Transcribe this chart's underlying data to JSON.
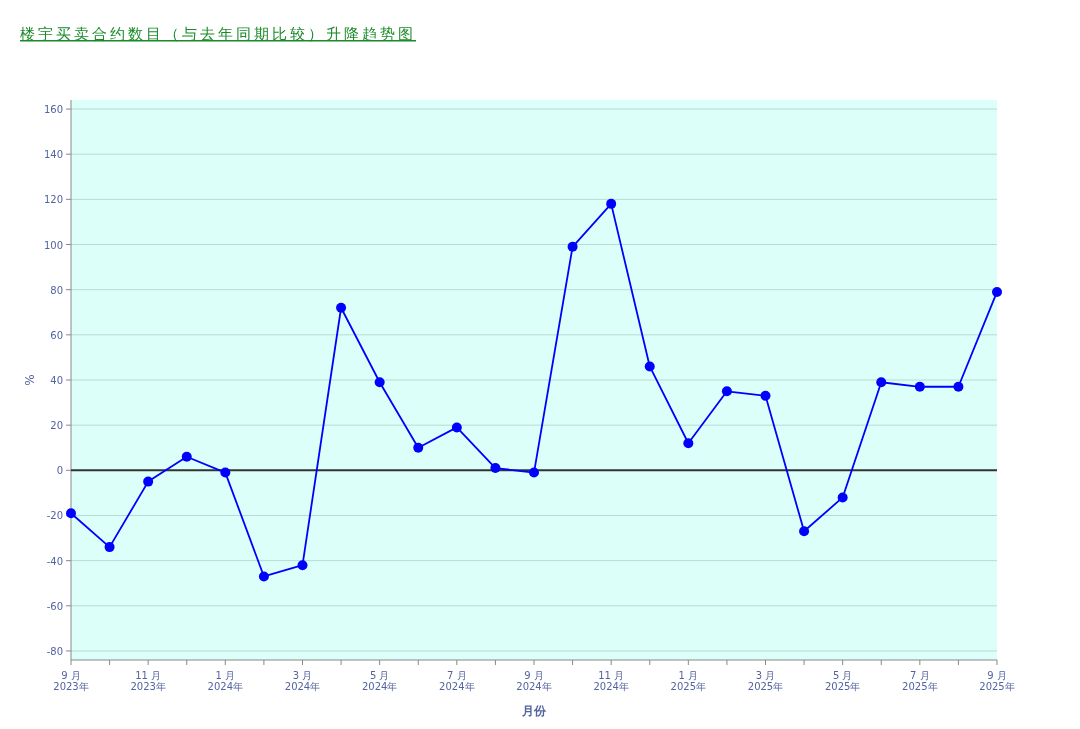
{
  "chart_data": {
    "type": "line",
    "title": "楼宇买卖合约数目（与去年同期比较）升降趋势图",
    "xlabel": "月份",
    "ylabel": "%",
    "x": [
      "2023-09",
      "2023-10",
      "2023-11",
      "2023-12",
      "2024-01",
      "2024-02",
      "2024-03",
      "2024-04",
      "2024-05",
      "2024-06",
      "2024-07",
      "2024-08",
      "2024-09",
      "2024-10",
      "2024-11",
      "2024-12",
      "2025-01",
      "2025-02",
      "2025-03",
      "2025-04",
      "2025-05",
      "2025-06",
      "2025-07",
      "2025-08",
      "2025-09"
    ],
    "series": [
      {
        "color": "#0000ff",
        "values": [
          -19,
          -34,
          -5,
          6,
          -1,
          -47,
          -42,
          72,
          39,
          10,
          19,
          1,
          -1,
          99,
          118,
          46,
          12,
          35,
          33,
          -27,
          -12,
          39,
          37,
          37,
          79
        ]
      }
    ],
    "xlim": [
      "2023-09",
      "2025-09"
    ],
    "xticks": [
      {
        "value": "2023-09",
        "label": "9 月\n2023年"
      },
      {
        "value": "2023-10",
        "label": null
      },
      {
        "value": "2023-11",
        "label": "11 月\n2023年"
      },
      {
        "value": "2023-12",
        "label": null
      },
      {
        "value": "2024-01",
        "label": "1 月\n2024年"
      },
      {
        "value": "2024-02",
        "label": null
      },
      {
        "value": "2024-03",
        "label": "3 月\n2024年"
      },
      {
        "value": "2024-04",
        "label": null
      },
      {
        "value": "2024-05",
        "label": "5 月\n2024年"
      },
      {
        "value": "2024-06",
        "label": null
      },
      {
        "value": "2024-07",
        "label": "7 月\n2024年"
      },
      {
        "value": "2024-08",
        "label": null
      },
      {
        "value": "2024-09",
        "label": "9 月\n2024年"
      },
      {
        "value": "2024-10",
        "label": null
      },
      {
        "value": "2024-11",
        "label": "11 月\n2024年"
      },
      {
        "value": "2024-12",
        "label": null
      },
      {
        "value": "2025-01",
        "label": "1 月\n2025年"
      },
      {
        "value": "2025-02",
        "label": null
      },
      {
        "value": "2025-03",
        "label": "3 月\n2025年"
      },
      {
        "value": "2025-04",
        "label": null
      },
      {
        "value": "2025-05",
        "label": "5 月\n2025年"
      },
      {
        "value": "2025-06",
        "label": null
      },
      {
        "value": "2025-07",
        "label": "7 月\n2025年"
      },
      {
        "value": "2025-08",
        "label": null
      },
      {
        "value": "2025-09",
        "label": "9 月\n2025年"
      }
    ],
    "ylim": [
      -84,
      164
    ],
    "yticks": [
      -80,
      -60,
      -40,
      -20,
      0,
      20,
      40,
      60,
      80,
      100,
      120,
      140,
      160
    ],
    "grid": "y",
    "marker": "circle",
    "line_style": "solid",
    "ref_lines": [
      {
        "axis": "y",
        "value": 0,
        "color": "#333333"
      }
    ]
  }
}
